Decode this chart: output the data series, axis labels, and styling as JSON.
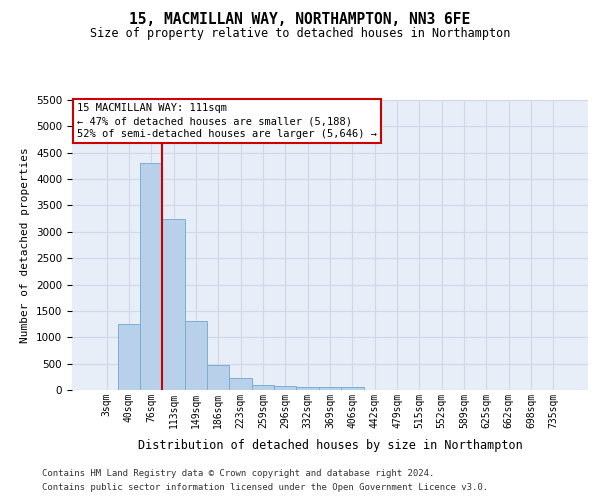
{
  "title_line1": "15, MACMILLAN WAY, NORTHAMPTON, NN3 6FE",
  "title_line2": "Size of property relative to detached houses in Northampton",
  "xlabel": "Distribution of detached houses by size in Northampton",
  "ylabel": "Number of detached properties",
  "footer_line1": "Contains HM Land Registry data © Crown copyright and database right 2024.",
  "footer_line2": "Contains public sector information licensed under the Open Government Licence v3.0.",
  "categories": [
    "3sqm",
    "40sqm",
    "76sqm",
    "113sqm",
    "149sqm",
    "186sqm",
    "223sqm",
    "259sqm",
    "296sqm",
    "332sqm",
    "369sqm",
    "406sqm",
    "442sqm",
    "479sqm",
    "515sqm",
    "552sqm",
    "589sqm",
    "625sqm",
    "662sqm",
    "698sqm",
    "735sqm"
  ],
  "values": [
    0,
    1250,
    4300,
    3250,
    1300,
    475,
    225,
    100,
    80,
    60,
    55,
    50,
    0,
    0,
    0,
    0,
    0,
    0,
    0,
    0,
    0
  ],
  "bar_color": "#b8d0ea",
  "bar_edge_color": "#7aafd4",
  "bar_linewidth": 0.7,
  "grid_color": "#d0d8e8",
  "ylim": [
    0,
    5500
  ],
  "yticks": [
    0,
    500,
    1000,
    1500,
    2000,
    2500,
    3000,
    3500,
    4000,
    4500,
    5000,
    5500
  ],
  "annotation_title": "15 MACMILLAN WAY: 111sqm",
  "annotation_line1": "← 47% of detached houses are smaller (5,188)",
  "annotation_line2": "52% of semi-detached houses are larger (5,646) →",
  "annotation_box_color": "#ffffff",
  "annotation_box_edge": "#cc0000",
  "red_line_color": "#cc0000",
  "red_line_x": 2.5,
  "background_color": "#e8eef8"
}
